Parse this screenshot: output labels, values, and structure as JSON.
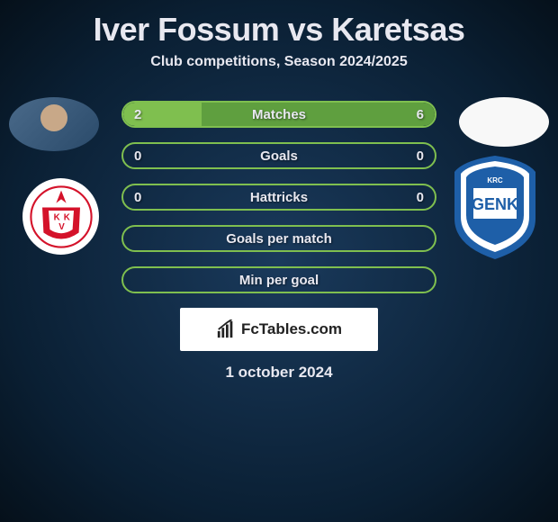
{
  "title": "Iver Fossum vs Karetsas",
  "subtitle": "Club competitions, Season 2024/2025",
  "date": "1 october 2024",
  "brand": "FcTables.com",
  "colors": {
    "bar_border": "#7fbf4f",
    "fill_left": "#7fbf4f",
    "fill_right": "#5f9f3f",
    "text": "#e8e8f0"
  },
  "bars": [
    {
      "label": "Matches",
      "left": "2",
      "right": "6",
      "fill_left_pct": 25,
      "fill_right_pct": 75
    },
    {
      "label": "Goals",
      "left": "0",
      "right": "0",
      "fill_left_pct": 0,
      "fill_right_pct": 0
    },
    {
      "label": "Hattricks",
      "left": "0",
      "right": "0",
      "fill_left_pct": 0,
      "fill_right_pct": 0
    },
    {
      "label": "Goals per match",
      "left": "",
      "right": "",
      "fill_left_pct": 0,
      "fill_right_pct": 0
    },
    {
      "label": "Min per goal",
      "left": "",
      "right": "",
      "fill_left_pct": 0,
      "fill_right_pct": 0
    }
  ],
  "player_left": {
    "name": "Iver Fossum",
    "club": "KV Kortrijk",
    "club_colors": [
      "#d4122a",
      "#ffffff"
    ]
  },
  "player_right": {
    "name": "Karetsas",
    "club": "KRC Genk",
    "club_colors": [
      "#1e5fa8",
      "#ffffff"
    ]
  }
}
